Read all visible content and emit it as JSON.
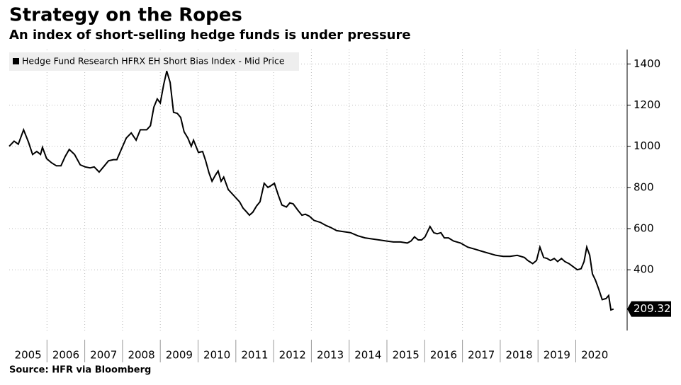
{
  "chart_data": {
    "type": "line",
    "title": "Strategy on the Ropes",
    "subtitle": "An index of short-selling hedge funds is under pressure",
    "source": "Source: HFR via Bloomberg",
    "x": [
      2005.0,
      2005.13,
      2005.24,
      2005.38,
      2005.51,
      2005.62,
      2005.73,
      2005.83,
      2005.88,
      2005.99,
      2006.12,
      2006.25,
      2006.37,
      2006.48,
      2006.59,
      2006.73,
      2006.88,
      2007.01,
      2007.14,
      2007.25,
      2007.38,
      2007.52,
      2007.63,
      2007.76,
      2007.85,
      2007.98,
      2008.1,
      2008.23,
      2008.36,
      2008.47,
      2008.64,
      2008.74,
      2008.83,
      2008.92,
      2009.0,
      2009.09,
      2009.17,
      2009.26,
      2009.35,
      2009.45,
      2009.54,
      2009.63,
      2009.73,
      2009.82,
      2009.88,
      2010.01,
      2010.12,
      2010.2,
      2010.29,
      2010.37,
      2010.46,
      2010.53,
      2010.61,
      2010.68,
      2010.8,
      2010.95,
      2011.1,
      2011.19,
      2011.29,
      2011.36,
      2011.45,
      2011.55,
      2011.64,
      2011.75,
      2011.85,
      2011.94,
      2012.02,
      2012.13,
      2012.22,
      2012.34,
      2012.43,
      2012.52,
      2012.64,
      2012.75,
      2012.84,
      2012.95,
      2013.07,
      2013.24,
      2013.39,
      2013.52,
      2013.67,
      2013.86,
      2014.04,
      2014.23,
      2014.42,
      2014.61,
      2014.79,
      2014.98,
      2015.17,
      2015.36,
      2015.54,
      2015.64,
      2015.73,
      2015.83,
      2015.92,
      2016.01,
      2016.14,
      2016.24,
      2016.33,
      2016.43,
      2016.52,
      2016.63,
      2016.76,
      2016.95,
      2017.14,
      2017.33,
      2017.51,
      2017.7,
      2017.89,
      2018.08,
      2018.26,
      2018.45,
      2018.64,
      2018.73,
      2018.86,
      2018.96,
      2019.05,
      2019.15,
      2019.24,
      2019.33,
      2019.43,
      2019.52,
      2019.62,
      2019.71,
      2019.82,
      2019.93,
      2020.04,
      2020.14,
      2020.22,
      2020.29,
      2020.37,
      2020.44,
      2020.52,
      2020.61,
      2020.7,
      2020.8,
      2020.87,
      2020.93,
      2021.0
    ],
    "series": [
      {
        "name": "Hedge Fund Research HFRX EH Short Bias Index - Mid Price",
        "color": "#000000",
        "values": [
          1000,
          1025,
          1010,
          1080,
          1020,
          960,
          975,
          960,
          995,
          940,
          920,
          905,
          905,
          950,
          985,
          960,
          910,
          900,
          895,
          900,
          875,
          905,
          930,
          935,
          935,
          990,
          1040,
          1065,
          1030,
          1080,
          1080,
          1100,
          1190,
          1230,
          1210,
          1300,
          1365,
          1310,
          1165,
          1160,
          1140,
          1070,
          1040,
          1000,
          1030,
          970,
          975,
          930,
          870,
          830,
          860,
          880,
          830,
          850,
          790,
          760,
          730,
          700,
          680,
          665,
          680,
          710,
          730,
          820,
          800,
          810,
          820,
          760,
          715,
          705,
          725,
          720,
          690,
          665,
          670,
          660,
          640,
          630,
          615,
          605,
          590,
          585,
          580,
          565,
          555,
          550,
          545,
          540,
          535,
          535,
          530,
          540,
          560,
          545,
          545,
          560,
          610,
          580,
          575,
          580,
          555,
          555,
          540,
          530,
          510,
          500,
          490,
          480,
          470,
          465,
          465,
          470,
          460,
          445,
          430,
          445,
          510,
          460,
          455,
          445,
          455,
          440,
          455,
          440,
          430,
          415,
          400,
          405,
          440,
          510,
          470,
          380,
          350,
          305,
          255,
          260,
          275,
          205,
          209.32
        ]
      }
    ],
    "xlim": [
      2005,
      2021.36
    ],
    "xticks": [
      2005,
      2006,
      2007,
      2008,
      2009,
      2010,
      2011,
      2012,
      2013,
      2014,
      2015,
      2016,
      2017,
      2018,
      2019,
      2020
    ],
    "ylim": [
      105,
      1470
    ],
    "yticks": [
      400,
      600,
      800,
      1000,
      1200,
      1400
    ],
    "grid": true
  }
}
